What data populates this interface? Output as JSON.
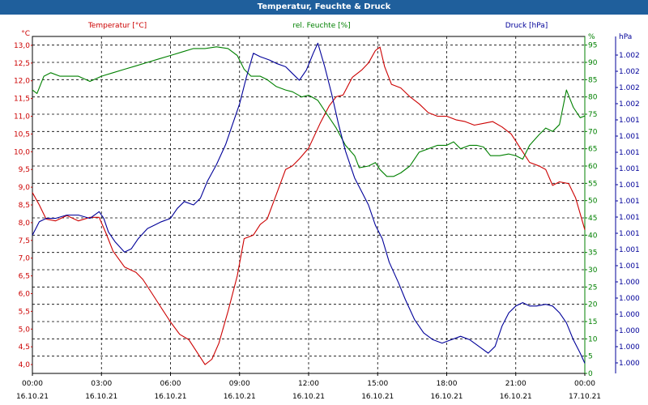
{
  "window": {
    "title": "Temperatur, Feuchte & Druck"
  },
  "chart_data": {
    "type": "line",
    "title": "Temperatur, Feuchte & Druck",
    "grid": true,
    "x_ticks": [
      {
        "time": "00:00",
        "date": "16.10.21"
      },
      {
        "time": "03:00",
        "date": "16.10.21"
      },
      {
        "time": "06:00",
        "date": "16.10.21"
      },
      {
        "time": "09:00",
        "date": "16.10.21"
      },
      {
        "time": "12:00",
        "date": "16.10.21"
      },
      {
        "time": "15:00",
        "date": "16.10.21"
      },
      {
        "time": "18:00",
        "date": "16.10.21"
      },
      {
        "time": "21:00",
        "date": "16.10.21"
      },
      {
        "time": "00:00",
        "date": "17.10.21"
      }
    ],
    "x_range_hours": [
      0,
      24
    ],
    "axes": {
      "temperature": {
        "label": "Temperatur [°C]",
        "unit": "°C",
        "color": "#cc0000",
        "side": "left",
        "range": [
          3.75,
          13.25
        ],
        "ticks": [
          "13,0",
          "12,5",
          "12,0",
          "11,5",
          "11,0",
          "10,5",
          "10,0",
          "9,5",
          "9,0",
          "8,5",
          "8,0",
          "7,5",
          "7,0",
          "6,5",
          "6,0",
          "5,5",
          "5,0",
          "4,5",
          "4,0"
        ]
      },
      "humidity": {
        "label": "rel. Feuchte [%]",
        "unit": "%",
        "color": "#008000",
        "side": "right",
        "range": [
          0,
          97.5
        ],
        "ticks": [
          "95",
          "90",
          "85",
          "80",
          "75",
          "70",
          "65",
          "60",
          "55",
          "50",
          "45",
          "40",
          "35",
          "30",
          "25",
          "20",
          "15",
          "10",
          "5",
          "0"
        ]
      },
      "pressure": {
        "label": "Druck [hPa]",
        "unit": "hPa",
        "color": "#000099",
        "side": "right",
        "range": [
          0,
          100
        ],
        "ticks": [
          "1.002",
          "1.002",
          "1.002",
          "1.002",
          "1.001",
          "1.001",
          "1.001",
          "1.001",
          "1.001",
          "1.001",
          "1.001",
          "1.001",
          "1.001",
          "1.001",
          "1.000",
          "1.000",
          "1.000",
          "1.000",
          "1.000",
          "1.000"
        ],
        "note_values_relative": "pressure series values are on a 0-100 relative scale matching the row grid"
      }
    },
    "series": [
      {
        "name": "Temperatur [°C]",
        "axis": "temperature",
        "color": "#cc0000",
        "points": [
          [
            0,
            8.85
          ],
          [
            0.3,
            8.5
          ],
          [
            0.6,
            8.1
          ],
          [
            1.0,
            8.05
          ],
          [
            1.5,
            8.2
          ],
          [
            2.0,
            8.05
          ],
          [
            2.5,
            8.15
          ],
          [
            2.9,
            8.15
          ],
          [
            3.2,
            7.7
          ],
          [
            3.5,
            7.2
          ],
          [
            4.0,
            6.75
          ],
          [
            4.5,
            6.6
          ],
          [
            4.8,
            6.4
          ],
          [
            5.2,
            6.0
          ],
          [
            5.6,
            5.6
          ],
          [
            6.0,
            5.2
          ],
          [
            6.4,
            4.85
          ],
          [
            6.8,
            4.7
          ],
          [
            7.2,
            4.3
          ],
          [
            7.5,
            4.0
          ],
          [
            7.8,
            4.15
          ],
          [
            8.1,
            4.6
          ],
          [
            8.5,
            5.5
          ],
          [
            8.9,
            6.5
          ],
          [
            9.2,
            7.55
          ],
          [
            9.6,
            7.65
          ],
          [
            9.9,
            7.95
          ],
          [
            10.2,
            8.1
          ],
          [
            10.6,
            8.8
          ],
          [
            11.0,
            9.5
          ],
          [
            11.3,
            9.6
          ],
          [
            11.6,
            9.8
          ],
          [
            12.0,
            10.1
          ],
          [
            12.5,
            10.8
          ],
          [
            12.9,
            11.3
          ],
          [
            13.2,
            11.55
          ],
          [
            13.5,
            11.6
          ],
          [
            13.9,
            12.1
          ],
          [
            14.3,
            12.3
          ],
          [
            14.6,
            12.5
          ],
          [
            14.9,
            12.85
          ],
          [
            15.1,
            12.95
          ],
          [
            15.3,
            12.4
          ],
          [
            15.6,
            11.9
          ],
          [
            16.0,
            11.8
          ],
          [
            16.4,
            11.55
          ],
          [
            16.8,
            11.35
          ],
          [
            17.2,
            11.1
          ],
          [
            17.6,
            11.0
          ],
          [
            18.0,
            11.0
          ],
          [
            18.4,
            10.9
          ],
          [
            18.8,
            10.85
          ],
          [
            19.2,
            10.75
          ],
          [
            19.6,
            10.8
          ],
          [
            20.0,
            10.85
          ],
          [
            20.4,
            10.7
          ],
          [
            20.8,
            10.5
          ],
          [
            21.2,
            10.1
          ],
          [
            21.6,
            9.7
          ],
          [
            22.0,
            9.6
          ],
          [
            22.3,
            9.5
          ],
          [
            22.6,
            9.05
          ],
          [
            22.9,
            9.15
          ],
          [
            23.3,
            9.1
          ],
          [
            23.6,
            8.7
          ],
          [
            24.0,
            7.8
          ]
        ]
      },
      {
        "name": "rel. Feuchte [%]",
        "axis": "humidity",
        "color": "#008000",
        "points": [
          [
            0,
            82
          ],
          [
            0.2,
            81
          ],
          [
            0.5,
            86
          ],
          [
            0.8,
            87
          ],
          [
            1.2,
            86
          ],
          [
            1.6,
            86
          ],
          [
            2.0,
            86
          ],
          [
            2.5,
            84.5
          ],
          [
            3.0,
            86
          ],
          [
            3.5,
            87
          ],
          [
            4.0,
            88
          ],
          [
            4.5,
            89
          ],
          [
            5.0,
            90
          ],
          [
            5.5,
            91
          ],
          [
            6.0,
            92
          ],
          [
            6.5,
            93
          ],
          [
            7.0,
            94
          ],
          [
            7.5,
            94
          ],
          [
            8.0,
            94.5
          ],
          [
            8.5,
            94
          ],
          [
            8.9,
            92
          ],
          [
            9.2,
            88
          ],
          [
            9.5,
            86
          ],
          [
            9.9,
            86
          ],
          [
            10.2,
            85
          ],
          [
            10.6,
            83
          ],
          [
            11.0,
            82
          ],
          [
            11.3,
            81.5
          ],
          [
            11.7,
            80
          ],
          [
            12.0,
            80.5
          ],
          [
            12.4,
            79
          ],
          [
            12.8,
            75
          ],
          [
            13.2,
            71
          ],
          [
            13.6,
            66
          ],
          [
            14.0,
            63
          ],
          [
            14.2,
            59.5
          ],
          [
            14.6,
            60
          ],
          [
            14.9,
            61
          ],
          [
            15.1,
            59
          ],
          [
            15.4,
            57
          ],
          [
            15.7,
            57
          ],
          [
            16.0,
            58
          ],
          [
            16.4,
            60
          ],
          [
            16.8,
            64
          ],
          [
            17.2,
            65
          ],
          [
            17.6,
            66
          ],
          [
            18.0,
            66
          ],
          [
            18.3,
            67
          ],
          [
            18.6,
            65
          ],
          [
            19.0,
            66
          ],
          [
            19.3,
            66
          ],
          [
            19.6,
            65.5
          ],
          [
            19.9,
            63
          ],
          [
            20.3,
            63
          ],
          [
            20.7,
            63.5
          ],
          [
            21.0,
            63
          ],
          [
            21.3,
            62
          ],
          [
            21.6,
            66
          ],
          [
            22.0,
            69
          ],
          [
            22.3,
            71
          ],
          [
            22.6,
            70
          ],
          [
            22.9,
            72
          ],
          [
            23.2,
            82
          ],
          [
            23.5,
            77
          ],
          [
            23.8,
            74
          ],
          [
            24.0,
            74.5
          ]
        ]
      },
      {
        "name": "Druck [hPa]",
        "axis": "pressure",
        "color": "#000099",
        "points": [
          [
            0,
            41
          ],
          [
            0.3,
            45
          ],
          [
            0.6,
            46
          ],
          [
            1.0,
            46
          ],
          [
            1.5,
            47
          ],
          [
            2.0,
            47
          ],
          [
            2.5,
            46
          ],
          [
            2.9,
            48
          ],
          [
            3.1,
            46
          ],
          [
            3.3,
            42
          ],
          [
            3.6,
            39
          ],
          [
            4.0,
            36
          ],
          [
            4.3,
            37
          ],
          [
            4.6,
            40
          ],
          [
            5.0,
            43
          ],
          [
            5.3,
            44
          ],
          [
            5.6,
            45
          ],
          [
            6.0,
            46
          ],
          [
            6.3,
            49
          ],
          [
            6.6,
            51
          ],
          [
            7.0,
            50
          ],
          [
            7.3,
            52
          ],
          [
            7.6,
            57
          ],
          [
            8.0,
            62
          ],
          [
            8.4,
            68
          ],
          [
            8.7,
            74
          ],
          [
            9.0,
            80
          ],
          [
            9.3,
            88
          ],
          [
            9.6,
            95
          ],
          [
            9.9,
            94
          ],
          [
            10.3,
            93
          ],
          [
            10.6,
            92
          ],
          [
            11.0,
            91
          ],
          [
            11.3,
            89
          ],
          [
            11.6,
            87
          ],
          [
            11.9,
            90
          ],
          [
            12.2,
            95
          ],
          [
            12.4,
            98
          ],
          [
            12.7,
            91
          ],
          [
            13.0,
            83
          ],
          [
            13.3,
            74
          ],
          [
            13.6,
            66
          ],
          [
            14.0,
            58
          ],
          [
            14.3,
            54
          ],
          [
            14.6,
            50
          ],
          [
            14.9,
            44
          ],
          [
            15.2,
            40
          ],
          [
            15.5,
            33
          ],
          [
            15.9,
            27
          ],
          [
            16.2,
            22
          ],
          [
            16.6,
            16
          ],
          [
            17.0,
            12
          ],
          [
            17.4,
            10
          ],
          [
            17.8,
            9
          ],
          [
            18.2,
            10
          ],
          [
            18.6,
            11
          ],
          [
            19.0,
            10
          ],
          [
            19.4,
            8
          ],
          [
            19.8,
            6
          ],
          [
            20.1,
            8
          ],
          [
            20.4,
            14
          ],
          [
            20.7,
            18
          ],
          [
            21.0,
            20
          ],
          [
            21.3,
            21
          ],
          [
            21.6,
            20
          ],
          [
            21.9,
            20
          ],
          [
            22.3,
            20.5
          ],
          [
            22.6,
            20
          ],
          [
            22.9,
            18
          ],
          [
            23.2,
            15
          ],
          [
            23.5,
            10
          ],
          [
            23.8,
            6
          ],
          [
            24.0,
            3
          ]
        ]
      }
    ]
  }
}
